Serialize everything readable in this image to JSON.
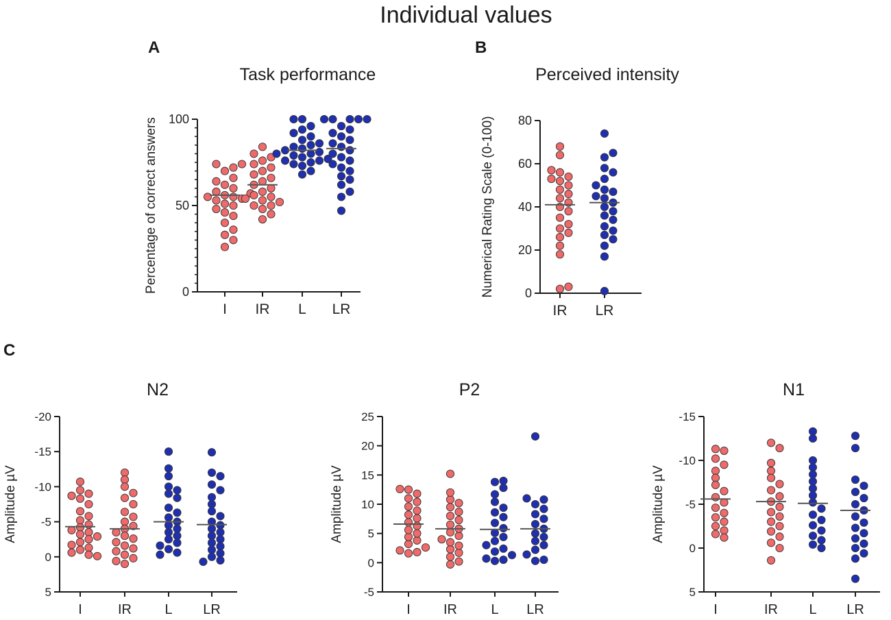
{
  "figure_title": "Individual values",
  "colors": {
    "red": "#ef6a6a",
    "blue": "#1f2fb0",
    "outline": "#333333",
    "mean": "#555555",
    "axis": "#1a1a1a"
  },
  "chart_data": [
    {
      "id": "A",
      "panel_label": "A",
      "type": "scatter",
      "style": "dot-plot",
      "title": "Task performance",
      "xlabel": "",
      "ylabel": "Percentage of correct answers",
      "ylim": [
        0,
        100
      ],
      "yticks": [
        0,
        50,
        100
      ],
      "yticks_minor_step": 5,
      "y_inverted": false,
      "categories": [
        "I",
        "IR",
        "L",
        "LR"
      ],
      "category_colors": [
        "red",
        "red",
        "blue",
        "blue"
      ],
      "means": [
        56,
        62,
        82,
        83
      ],
      "series": [
        {
          "name": "I",
          "values": [
            74,
            74,
            72,
            70,
            66,
            64,
            62,
            60,
            58,
            57,
            56,
            55,
            55,
            54,
            53,
            51,
            50,
            48,
            46,
            44,
            40,
            36,
            33,
            30,
            26
          ]
        },
        {
          "name": "IR",
          "values": [
            84,
            80,
            78,
            76,
            74,
            72,
            70,
            68,
            66,
            64,
            62,
            60,
            58,
            56,
            55,
            54,
            53,
            52,
            50,
            50,
            48,
            45,
            42
          ]
        },
        {
          "name": "L",
          "values": [
            100,
            100,
            96,
            94,
            92,
            90,
            88,
            86,
            85,
            84,
            83,
            82,
            81,
            80,
            80,
            79,
            78,
            77,
            76,
            76,
            75,
            74,
            73,
            70,
            68
          ]
        },
        {
          "name": "LR",
          "values": [
            100,
            100,
            100,
            100,
            100,
            96,
            94,
            92,
            90,
            88,
            86,
            84,
            82,
            80,
            78,
            76,
            74,
            72,
            70,
            67,
            65,
            62,
            58,
            55,
            47
          ]
        }
      ]
    },
    {
      "id": "B",
      "panel_label": "B",
      "type": "scatter",
      "style": "dot-plot",
      "title": "Perceived intensity",
      "xlabel": "",
      "ylabel": "Numerical Rating Scale (0-100)",
      "ylim": [
        0,
        80
      ],
      "yticks": [
        0,
        20,
        40,
        60,
        80
      ],
      "y_inverted": false,
      "categories": [
        "IR",
        "LR"
      ],
      "category_colors": [
        "red",
        "blue"
      ],
      "means": [
        41,
        42
      ],
      "series": [
        {
          "name": "IR",
          "values": [
            68,
            64,
            57,
            56,
            54,
            53,
            52,
            50,
            48,
            46,
            44,
            42,
            40,
            38,
            35,
            32,
            30,
            28,
            26,
            22,
            18,
            3,
            2
          ]
        },
        {
          "name": "LR",
          "values": [
            74,
            65,
            63,
            58,
            56,
            53,
            50,
            48,
            47,
            45,
            44,
            42,
            40,
            38,
            36,
            34,
            31,
            29,
            27,
            25,
            22,
            17,
            1
          ]
        }
      ]
    },
    {
      "id": "C1",
      "panel_label": "C",
      "type": "scatter",
      "style": "dot-plot",
      "title": "N2",
      "xlabel": "",
      "ylabel": "Amplitude µV",
      "ylim": [
        -20,
        5
      ],
      "yticks": [
        -20,
        -15,
        -10,
        -5,
        0,
        5
      ],
      "y_inverted": true,
      "categories": [
        "I",
        "IR",
        "L",
        "LR"
      ],
      "category_colors": [
        "red",
        "red",
        "blue",
        "blue"
      ],
      "means": [
        -4.3,
        -4,
        -5,
        -4.6
      ],
      "series": [
        {
          "name": "I",
          "values": [
            -10.7,
            -9.5,
            -9,
            -8.7,
            -8.3,
            -7.5,
            -6.5,
            -5.8,
            -5.2,
            -4.6,
            -4.2,
            -3.8,
            -3.5,
            -3.2,
            -2.9,
            -2.5,
            -2.1,
            -1.7,
            -1.3,
            -1,
            -0.6,
            -0.3,
            -0.1
          ]
        },
        {
          "name": "IR",
          "values": [
            -12,
            -11,
            -10,
            -9.1,
            -8.4,
            -7.5,
            -6.4,
            -5.7,
            -5,
            -4.4,
            -4,
            -3.5,
            -3,
            -2.6,
            -2.1,
            -1.6,
            -1.2,
            -0.8,
            -0.3,
            0.2,
            0.6,
            1
          ]
        },
        {
          "name": "L",
          "values": [
            -15,
            -12.6,
            -11.5,
            -10,
            -9.5,
            -9,
            -8.4,
            -7,
            -6.3,
            -5.6,
            -5,
            -4.5,
            -4,
            -3.5,
            -3,
            -2.5,
            -2,
            -1.6,
            -1.1,
            -0.6,
            -0.3
          ]
        },
        {
          "name": "LR",
          "values": [
            -14.9,
            -12,
            -11.5,
            -10.3,
            -9.5,
            -8.5,
            -7.5,
            -6.5,
            -5.8,
            -5,
            -4.5,
            -4,
            -3.5,
            -3,
            -2.5,
            -2,
            -1.5,
            -1,
            -0.5,
            0,
            0.5,
            0.7
          ]
        }
      ]
    },
    {
      "id": "C2",
      "panel_label": "",
      "type": "scatter",
      "style": "dot-plot",
      "title": "P2",
      "xlabel": "",
      "ylabel": "Amplitude µV",
      "ylim": [
        -5,
        25
      ],
      "yticks": [
        -5,
        0,
        5,
        10,
        15,
        20,
        25
      ],
      "y_inverted": false,
      "categories": [
        "I",
        "IR",
        "L",
        "LR"
      ],
      "category_colors": [
        "red",
        "red",
        "blue",
        "blue"
      ],
      "means": [
        6.6,
        5.8,
        5.7,
        5.8
      ],
      "series": [
        {
          "name": "I",
          "values": [
            12.6,
            12.5,
            11.8,
            11,
            10.4,
            9.6,
            8.9,
            8.2,
            7.6,
            6.9,
            6.3,
            5.6,
            5,
            4.4,
            3.8,
            3.2,
            2.6,
            2.1,
            1.8,
            1.6
          ]
        },
        {
          "name": "IR",
          "values": [
            15.2,
            12,
            10.8,
            10.2,
            9.5,
            8.7,
            8,
            7.3,
            6.5,
            5.8,
            5.2,
            4.6,
            4,
            3.5,
            2.9,
            2.3,
            1.7,
            1,
            0.2,
            -0.3
          ]
        },
        {
          "name": "L",
          "values": [
            14,
            13.8,
            12.8,
            11.7,
            10.4,
            9.4,
            8.6,
            7.8,
            6.8,
            5.9,
            5.1,
            4.4,
            3.7,
            3,
            2.4,
            1.9,
            1.3,
            0.7,
            0.5,
            0.3
          ]
        },
        {
          "name": "LR",
          "values": [
            21.6,
            11,
            10.8,
            10,
            9.2,
            8.3,
            7.5,
            6.6,
            5.8,
            5,
            4.4,
            3.7,
            3,
            2.2,
            1.4,
            0.5,
            0.3
          ]
        }
      ]
    },
    {
      "id": "C3",
      "panel_label": "",
      "type": "scatter",
      "style": "dot-plot",
      "title": "N1",
      "xlabel": "",
      "ylabel": "Amplitude µV",
      "ylim": [
        -15,
        5
      ],
      "yticks": [
        -15,
        -10,
        -5,
        0,
        5
      ],
      "y_inverted": true,
      "categories": [
        "I",
        "IR",
        "L",
        "LR"
      ],
      "category_colors": [
        "red",
        "red",
        "blue",
        "blue"
      ],
      "means": [
        -5.6,
        -5.3,
        -5.1,
        -4.3
      ],
      "series": [
        {
          "name": "I",
          "values": [
            -11.3,
            -11.1,
            -10.2,
            -9.5,
            -8.8,
            -8,
            -7.2,
            -6.5,
            -5.8,
            -5.2,
            -4.6,
            -4,
            -3.5,
            -3,
            -2.5,
            -2,
            -1.6,
            -1.2
          ]
        },
        {
          "name": "IR",
          "values": [
            -12,
            -11.4,
            -9.7,
            -8.8,
            -8,
            -7.3,
            -6.6,
            -5.9,
            -5.3,
            -4.7,
            -4.1,
            -3.6,
            -3,
            -2.5,
            -1.9,
            -1.3,
            -0.6,
            0,
            1.4
          ]
        },
        {
          "name": "L",
          "values": [
            -13.3,
            -12.5,
            -10,
            -9.2,
            -8.4,
            -7.6,
            -6.8,
            -6,
            -5.2,
            -4.5,
            -3.8,
            -3.2,
            -2.6,
            -2,
            -1.4,
            -0.9,
            -0.4,
            0
          ]
        },
        {
          "name": "LR",
          "values": [
            -12.8,
            -11.4,
            -7.8,
            -7.1,
            -6.4,
            -5.7,
            -5,
            -4.3,
            -3.6,
            -2.9,
            -2.3,
            -1.7,
            -1.1,
            -0.5,
            0,
            0.6,
            1.2,
            3.5
          ]
        }
      ]
    }
  ]
}
